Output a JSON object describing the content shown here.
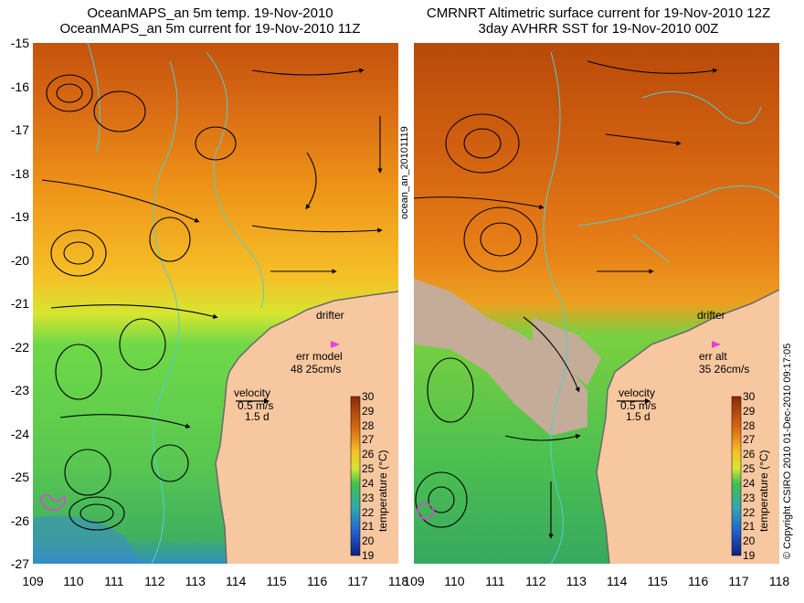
{
  "titles": {
    "left_line1": "OceanMAPS_an 5m temp. 19-Nov-2010",
    "left_line2": "OceanMAPS_an 5m current for 19-Nov-2010 11Z",
    "right_line1": "CMRNRT Altimetric surface current for 19-Nov-2010 12Z",
    "right_line2": "3day AVHRR SST for 19-Nov-2010 00Z"
  },
  "axes": {
    "lat_labels": [
      "-15",
      "-16",
      "-17",
      "-18",
      "-19",
      "-20",
      "-21",
      "-22",
      "-23",
      "-24",
      "-25",
      "-26",
      "-27"
    ],
    "lon_labels": [
      "109",
      "110",
      "111",
      "112",
      "113",
      "114",
      "115",
      "116",
      "117",
      "118"
    ]
  },
  "side_text": {
    "middle_vertical": "ocean_an_20101119",
    "right_vertical": "© Copyright CSIRO 2010  01-Dec-2010 09:17:05"
  },
  "left_panel": {
    "drifter_label": "drifter",
    "err_label": "err model",
    "err_value": "48 25cm/s",
    "velocity_label": "velocity",
    "velocity_scale": "0.5 m/s",
    "velocity_days": "1.5 d"
  },
  "right_panel": {
    "drifter_label": "drifter",
    "err_label": "err alt",
    "err_value": "35 26cm/s",
    "velocity_label": "velocity",
    "velocity_scale": "0.5 m/s",
    "velocity_days": "1.5 d"
  },
  "colorbar": {
    "title": "temperature (°C)",
    "ticks": [
      "30",
      "29",
      "28",
      "27",
      "26",
      "25",
      "24",
      "23",
      "22",
      "21",
      "20",
      "19"
    ]
  },
  "colors": {
    "land": "#f7c7a0",
    "coast_contour": "#4fd0d0",
    "drifter_marker": "#e040e0",
    "warm": "#c85a10",
    "mid": "#f0a020",
    "cool": "#50c850"
  }
}
